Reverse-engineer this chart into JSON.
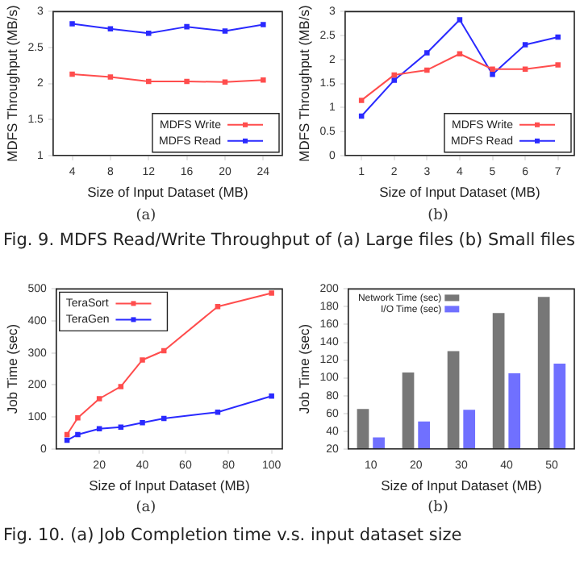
{
  "chart_data": [
    {
      "type": "line",
      "xlabel": "Size of Input Dataset (MB)",
      "ylabel": "MDFS Throughput (MB/s)",
      "x": [
        4,
        8,
        12,
        16,
        20,
        24
      ],
      "xlim": [
        2,
        26
      ],
      "xticks": [
        4,
        8,
        12,
        16,
        20,
        24
      ],
      "ylim": [
        1,
        3
      ],
      "yticks": [
        1,
        1.5,
        2,
        2.5,
        3
      ],
      "series": [
        {
          "name": "MDFS Write",
          "color": "#ff4d4d",
          "values": [
            2.13,
            2.09,
            2.03,
            2.03,
            2.02,
            2.05
          ]
        },
        {
          "name": "MDFS Read",
          "color": "#2a2aff",
          "values": [
            2.83,
            2.76,
            2.7,
            2.79,
            2.73,
            2.82
          ]
        }
      ],
      "legend": "bottom right",
      "marker": "square",
      "line_style": "solid",
      "grid": false,
      "annotations": [
        "(a)"
      ]
    },
    {
      "type": "line",
      "xlabel": "Size of Input Dataset (MB)",
      "ylabel": "MDFS Throughput (MB/s)",
      "x": [
        1,
        2,
        3,
        4,
        5,
        6,
        7
      ],
      "xlim": [
        0.5,
        7.5
      ],
      "xticks": [
        1,
        2,
        3,
        4,
        5,
        6,
        7
      ],
      "ylim": [
        0,
        3
      ],
      "yticks": [
        0,
        0.5,
        1,
        1.5,
        2,
        2.5,
        3
      ],
      "series": [
        {
          "name": "MDFS Write",
          "color": "#ff4d4d",
          "values": [
            1.15,
            1.68,
            1.78,
            2.12,
            1.8,
            1.8,
            1.89
          ]
        },
        {
          "name": "MDFS Read",
          "color": "#2a2aff",
          "values": [
            0.82,
            1.57,
            2.14,
            2.83,
            1.69,
            2.31,
            2.47
          ]
        }
      ],
      "legend": "bottom right",
      "marker": "square",
      "line_style": "solid",
      "grid": false,
      "annotations": [
        "(b)",
        "Fig. 9.  MDFS Read/Write Throughput of (a) Large files (b) Small files"
      ]
    },
    {
      "type": "line",
      "xlabel": "Size of Input Dataset (MB)",
      "ylabel": "Job Time (sec)",
      "x": [
        5,
        10,
        20,
        30,
        40,
        50,
        75,
        100
      ],
      "xlim": [
        0,
        105
      ],
      "xticks": [
        20,
        40,
        60,
        80,
        100
      ],
      "ylim": [
        0,
        500
      ],
      "yticks": [
        0,
        100,
        200,
        300,
        400,
        500
      ],
      "series": [
        {
          "name": "TeraSort",
          "color": "#ff4d4d",
          "values": [
            45,
            97,
            157,
            195,
            278,
            307,
            445,
            487
          ]
        },
        {
          "name": "TeraGen",
          "color": "#2a2aff",
          "values": [
            27,
            45,
            63,
            68,
            82,
            95,
            115,
            165
          ]
        }
      ],
      "legend": "top left",
      "marker": "square",
      "line_style": "solid",
      "grid": false,
      "annotations": [
        "(a)"
      ]
    },
    {
      "type": "bar",
      "xlabel": "Size of Input Dataset (MB)",
      "ylabel": "Job Time (sec)",
      "categories": [
        "10",
        "20",
        "30",
        "40",
        "50"
      ],
      "ylim": [
        20,
        200
      ],
      "yticks": [
        20,
        40,
        60,
        80,
        100,
        120,
        140,
        160,
        180,
        200
      ],
      "series": [
        {
          "name": "Network Time (sec)",
          "color": "#777777",
          "values": [
            65,
            106,
            130,
            173,
            191
          ]
        },
        {
          "name": "I/O Time (sec)",
          "color": "#7070ff",
          "values": [
            33,
            51,
            64,
            105,
            116
          ]
        }
      ],
      "legend": "top left",
      "grid": false,
      "annotations": [
        "(b)",
        "Fig. 10.  (a) Job Completion time v.s. input dataset size"
      ]
    }
  ]
}
